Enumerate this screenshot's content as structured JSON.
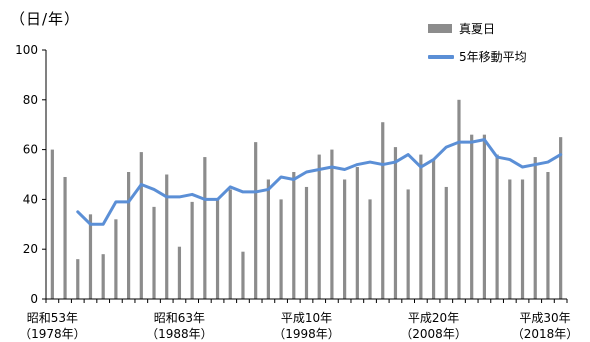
{
  "unit_label": "（日/年）",
  "colors": {
    "bar": "#8c8c8c",
    "line": "#5b8fd6",
    "axis": "#000000"
  },
  "chart_data": {
    "type": "bar",
    "y_ticks": [
      "0",
      "20",
      "40",
      "60",
      "80",
      "100"
    ],
    "ylim": [
      0,
      100
    ],
    "grid": false,
    "legend_position": "top-right",
    "x_labels": [
      {
        "year": 1978,
        "era": "昭和53年",
        "western": "（1978年）"
      },
      {
        "year": 1988,
        "era": "昭和63年",
        "western": "（1988年）"
      },
      {
        "year": 1998,
        "era": "平成10年",
        "western": "（1998年）"
      },
      {
        "year": 2008,
        "era": "平成20年",
        "western": "（2008年）"
      },
      {
        "year": 2018,
        "era": "平成30年",
        "western": "（2018年）"
      }
    ],
    "years": [
      1978,
      1979,
      1980,
      1981,
      1982,
      1983,
      1984,
      1985,
      1986,
      1987,
      1988,
      1989,
      1990,
      1991,
      1992,
      1993,
      1994,
      1995,
      1996,
      1997,
      1998,
      1999,
      2000,
      2001,
      2002,
      2003,
      2004,
      2005,
      2006,
      2007,
      2008,
      2009,
      2010,
      2011,
      2012,
      2013,
      2014,
      2015,
      2016,
      2017,
      2018
    ],
    "series": [
      {
        "name": "真夏日",
        "kind": "bar",
        "values": [
          60,
          49,
          16,
          34,
          18,
          32,
          51,
          59,
          37,
          50,
          21,
          39,
          57,
          40,
          44,
          19,
          63,
          48,
          40,
          51,
          45,
          58,
          60,
          48,
          53,
          40,
          71,
          61,
          44,
          58,
          56,
          45,
          80,
          66,
          66,
          58,
          48,
          48,
          57,
          51,
          65
        ]
      },
      {
        "name": "5年移動平均",
        "kind": "line",
        "values": [
          null,
          null,
          35,
          30,
          30,
          39,
          39,
          46,
          44,
          41,
          41,
          42,
          40,
          40,
          45,
          43,
          43,
          44,
          49,
          48,
          51,
          52,
          53,
          52,
          54,
          55,
          54,
          55,
          58,
          53,
          56,
          61,
          63,
          63,
          64,
          57,
          56,
          53,
          54,
          55,
          58
        ]
      }
    ]
  }
}
